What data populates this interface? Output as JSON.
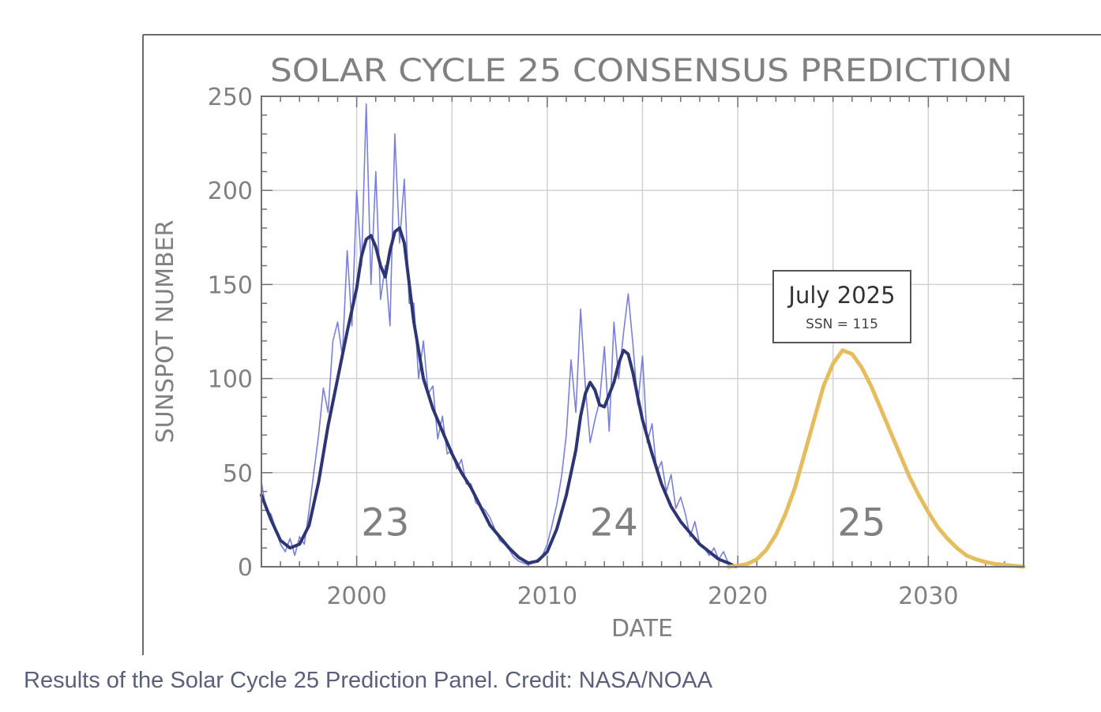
{
  "caption": "Results of the Solar Cycle 25 Prediction Panel. Credit: NASA/NOAA",
  "chart_data": {
    "type": "line",
    "title": "SOLAR CYCLE 25 CONSENSUS PREDICTION",
    "xlabel": "DATE",
    "ylabel": "SUNSPOT NUMBER",
    "xlim": [
      1995,
      2035
    ],
    "ylim": [
      0,
      250
    ],
    "xticks": [
      2000,
      2010,
      2020,
      2030
    ],
    "yticks": [
      0,
      50,
      100,
      150,
      200,
      250
    ],
    "grid": true,
    "cycle_labels": [
      {
        "text": "23",
        "x": 2001.5,
        "y": 25
      },
      {
        "text": "24",
        "x": 2013.5,
        "y": 25
      },
      {
        "text": "25",
        "x": 2026.5,
        "y": 25
      }
    ],
    "annotation": {
      "title": "July 2025",
      "subtitle": "SSN = 115"
    },
    "colors": {
      "monthly": "#6a72d6",
      "smoothed": "#2e3573",
      "prediction": "#e5bd5f",
      "grid": "#d2d2d2",
      "text": "#808080"
    },
    "series": [
      {
        "role": "monthly",
        "x": [
          1995.0,
          1995.25,
          1995.5,
          1995.75,
          1996.0,
          1996.25,
          1996.5,
          1996.75,
          1997.0,
          1997.25,
          1997.5,
          1997.75,
          1998.0,
          1998.25,
          1998.5,
          1998.75,
          1999.0,
          1999.25,
          1999.5,
          1999.75,
          2000.0,
          2000.25,
          2000.5,
          2000.75,
          2001.0,
          2001.25,
          2001.5,
          2001.75,
          2002.0,
          2002.25,
          2002.5,
          2002.75,
          2003.0,
          2003.25,
          2003.5,
          2003.75,
          2004.0,
          2004.25,
          2004.5,
          2004.75,
          2005.0,
          2005.25,
          2005.5,
          2005.75,
          2006.0,
          2006.25,
          2006.5,
          2006.75,
          2007.0,
          2007.25,
          2007.5,
          2007.75,
          2008.0,
          2008.25,
          2008.5,
          2008.75,
          2009.0,
          2009.25,
          2009.5,
          2009.75,
          2010.0,
          2010.25,
          2010.5,
          2010.75,
          2011.0,
          2011.25,
          2011.5,
          2011.75,
          2012.0,
          2012.25,
          2012.5,
          2012.75,
          2013.0,
          2013.25,
          2013.5,
          2013.75,
          2014.0,
          2014.25,
          2014.5,
          2014.75,
          2015.0,
          2015.25,
          2015.5,
          2015.75,
          2016.0,
          2016.25,
          2016.5,
          2016.75,
          2017.0,
          2017.25,
          2017.5,
          2017.75,
          2018.0,
          2018.25,
          2018.5,
          2018.75,
          2019.0,
          2019.25,
          2019.5
        ],
        "y": [
          45,
          30,
          28,
          20,
          12,
          8,
          15,
          6,
          16,
          12,
          30,
          50,
          70,
          95,
          82,
          120,
          130,
          112,
          168,
          128,
          200,
          160,
          246,
          150,
          210,
          142,
          160,
          128,
          230,
          172,
          206,
          140,
          140,
          100,
          120,
          92,
          96,
          68,
          80,
          60,
          62,
          52,
          57,
          44,
          44,
          34,
          32,
          30,
          26,
          20,
          14,
          12,
          9,
          5,
          3,
          2,
          1,
          2,
          4,
          6,
          12,
          22,
          33,
          48,
          70,
          110,
          82,
          137,
          96,
          66,
          78,
          88,
          117,
          72,
          130,
          100,
          124,
          145,
          118,
          86,
          112,
          66,
          76,
          50,
          56,
          40,
          49,
          31,
          37,
          28,
          16,
          24,
          12,
          10,
          6,
          10,
          4,
          8,
          2
        ]
      },
      {
        "role": "smoothed",
        "x": [
          1995.0,
          1995.5,
          1996.0,
          1996.5,
          1997.0,
          1997.5,
          1998.0,
          1998.5,
          1999.0,
          1999.5,
          2000.0,
          2000.25,
          2000.5,
          2000.75,
          2001.0,
          2001.25,
          2001.5,
          2001.75,
          2002.0,
          2002.25,
          2002.5,
          2003.0,
          2003.5,
          2004.0,
          2004.5,
          2005.0,
          2005.5,
          2006.0,
          2006.5,
          2007.0,
          2007.5,
          2008.0,
          2008.5,
          2009.0,
          2009.5,
          2010.0,
          2010.5,
          2011.0,
          2011.5,
          2011.75,
          2012.0,
          2012.25,
          2012.5,
          2012.75,
          2013.0,
          2013.5,
          2013.75,
          2014.0,
          2014.25,
          2014.5,
          2014.75,
          2015.0,
          2015.5,
          2016.0,
          2016.5,
          2017.0,
          2017.5,
          2018.0,
          2018.5,
          2019.0,
          2019.5,
          2019.9
        ],
        "y": [
          38,
          25,
          14,
          10,
          12,
          22,
          45,
          75,
          100,
          125,
          148,
          165,
          174,
          176,
          170,
          160,
          154,
          168,
          178,
          180,
          172,
          130,
          100,
          84,
          72,
          60,
          50,
          42,
          32,
          22,
          16,
          10,
          5,
          2,
          3,
          8,
          20,
          38,
          62,
          80,
          92,
          98,
          94,
          86,
          85,
          98,
          108,
          115,
          113,
          103,
          90,
          78,
          60,
          44,
          32,
          24,
          18,
          12,
          8,
          4,
          2,
          0
        ]
      },
      {
        "role": "prediction",
        "x": [
          2019.5,
          2020.0,
          2020.5,
          2021.0,
          2021.5,
          2022.0,
          2022.5,
          2023.0,
          2023.5,
          2024.0,
          2024.5,
          2025.0,
          2025.5,
          2026.0,
          2026.5,
          2027.0,
          2027.5,
          2028.0,
          2028.5,
          2029.0,
          2029.5,
          2030.0,
          2030.5,
          2031.0,
          2031.5,
          2032.0,
          2032.5,
          2033.0,
          2033.5,
          2034.0,
          2034.5,
          2035.0
        ],
        "y": [
          0,
          0.5,
          1.5,
          4,
          9,
          17,
          28,
          42,
          60,
          78,
          96,
          108,
          115,
          113,
          106,
          96,
          84,
          72,
          60,
          48,
          38,
          29,
          21,
          15,
          10,
          6,
          4,
          2.5,
          1.5,
          1,
          0.5,
          0
        ]
      }
    ]
  }
}
